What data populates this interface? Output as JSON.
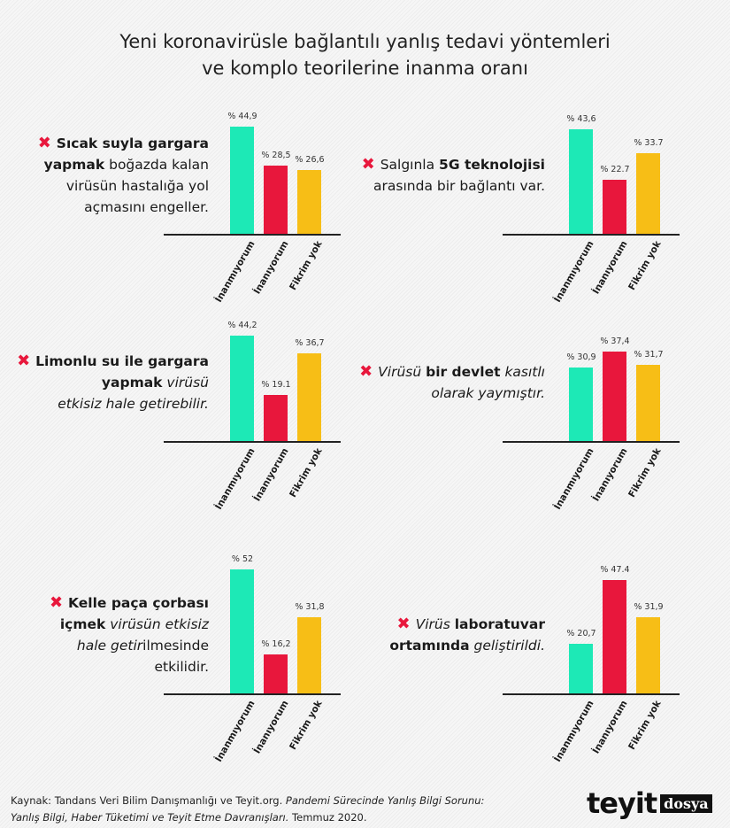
{
  "title": [
    "Yeni koronavirüsle bağlantılı yanlış tedavi yöntemleri",
    "ve komplo teorilerine inanma oranı"
  ],
  "colors": {
    "Inanmıyorum": "#1de9b6",
    "Inanıyorum": "#e8173c",
    "Fikrim yok": "#f7be16"
  },
  "mark_icon": "x-icon",
  "mark_symbol": "✖",
  "chart_data": {
    "type": "bar",
    "categories": [
      "İnanmıyorum",
      "İnanıyorum",
      "Fikrim yok"
    ],
    "value_prefix": "% ",
    "panels": [
      {
        "question": [
          [
            {
              "t": "Sıcak suyla gargara",
              "b": true
            }
          ],
          [
            {
              "t": "yapmak",
              "b": true
            },
            {
              "t": " boğazda kalan"
            }
          ],
          [
            {
              "t": "virüsün hastalığa yol"
            }
          ],
          [
            {
              "t": "açmasını engeller."
            }
          ]
        ],
        "values": [
          44.9,
          28.5,
          26.6
        ],
        "labels": [
          "% 44,9",
          "% 28,5",
          "% 26,6"
        ]
      },
      {
        "question": [
          [
            {
              "t": "Salgınla "
            },
            {
              "t": "5G teknolojisi",
              "b": true
            }
          ],
          [
            {
              "t": "arasında bir bağlantı var."
            }
          ]
        ],
        "values": [
          43.6,
          22.7,
          33.7
        ],
        "labels": [
          "% 43,6",
          "% 22.7",
          "% 33.7"
        ]
      },
      {
        "question": [
          [
            {
              "t": "Limonlu su ile gargara",
              "b": true
            }
          ],
          [
            {
              "t": "yapmak",
              "b": true
            },
            {
              "t": " virüsü",
              "i": true
            }
          ],
          [
            {
              "t": "etkisiz hale getirebilir.",
              "i": true
            }
          ]
        ],
        "values": [
          44.2,
          19.1,
          36.7
        ],
        "labels": [
          "% 44,2",
          "% 19.1",
          "% 36,7"
        ]
      },
      {
        "question": [
          [
            {
              "t": "Virüsü ",
              "i": true
            },
            {
              "t": "bir devlet",
              "b": true
            },
            {
              "t": " kasıtlı",
              "i": true
            }
          ],
          [
            {
              "t": "olarak yaymıştır.",
              "i": true
            }
          ]
        ],
        "values": [
          30.9,
          37.4,
          31.7
        ],
        "labels": [
          "% 30,9",
          "% 37,4",
          "% 31,7"
        ]
      },
      {
        "question": [
          [
            {
              "t": "Kelle paça çorbası",
              "b": true
            }
          ],
          [
            {
              "t": "içmek",
              "b": true
            },
            {
              "t": " virüsün etkisiz",
              "i": true
            }
          ],
          [
            {
              "t": "hale getir",
              "i": true
            },
            {
              "t": "ilmesinde"
            }
          ],
          [
            {
              "t": "etkilidir."
            }
          ]
        ],
        "values": [
          52,
          16.2,
          31.8
        ],
        "labels": [
          "% 52",
          "% 16,2",
          "% 31,8"
        ]
      },
      {
        "question": [
          [
            {
              "t": "Virüs ",
              "i": true
            },
            {
              "t": "laboratuvar",
              "b": true
            }
          ],
          [
            {
              "t": "ortamında",
              "b": true
            },
            {
              "t": " geliştirildi.",
              "i": true
            }
          ]
        ],
        "values": [
          20.7,
          47.4,
          31.9
        ],
        "labels": [
          "% 20,7",
          "% 47.4",
          "% 31,9"
        ]
      }
    ]
  },
  "source": {
    "line1_a": "Kaynak: Tandans Veri Bilim Danışmanlığı ve Teyit.org. ",
    "line1_b": "Pandemi Sürecinde Yanlış Bilgi Sorunu:",
    "line2_a": "Yanlış Bilgi, Haber Tüketimi ve Teyit Etme Davranışları.",
    "line2_b": " Temmuz 2020."
  },
  "logo": {
    "main": "teyit",
    "sub": "dosya"
  }
}
